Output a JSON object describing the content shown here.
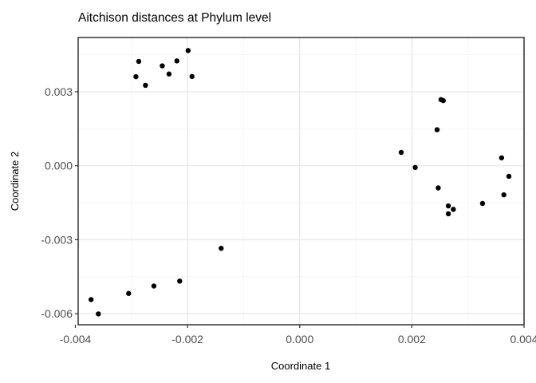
{
  "chart_data": {
    "type": "scatter",
    "title": "Aitchison distances at Phylum level",
    "xlabel": "Coordinate 1",
    "ylabel": "Coordinate 2",
    "xlim": [
      -0.00395,
      0.004
    ],
    "ylim": [
      -0.00645,
      0.0052
    ],
    "x_ticks": [
      -0.004,
      -0.002,
      0.0,
      0.002,
      0.004
    ],
    "x_tick_labels": [
      "-0.004",
      "-0.002",
      "0.000",
      "0.002",
      "0.004"
    ],
    "y_ticks": [
      -0.006,
      -0.003,
      0.0,
      0.003
    ],
    "y_tick_labels": [
      "-0.006",
      "-0.003",
      "0.000",
      "0.003"
    ],
    "grid": true,
    "theme": "black-and-white",
    "points": [
      {
        "x": -0.00287,
        "y": 0.00423
      },
      {
        "x": -0.00292,
        "y": 0.00361
      },
      {
        "x": -0.00275,
        "y": 0.00326
      },
      {
        "x": -0.00245,
        "y": 0.00405
      },
      {
        "x": -0.00233,
        "y": 0.00372
      },
      {
        "x": -0.00219,
        "y": 0.00425
      },
      {
        "x": -0.00199,
        "y": 0.00467
      },
      {
        "x": -0.00192,
        "y": 0.00362
      },
      {
        "x": -0.0014,
        "y": -0.00335
      },
      {
        "x": -0.00214,
        "y": -0.00468
      },
      {
        "x": -0.0026,
        "y": -0.00488
      },
      {
        "x": -0.00305,
        "y": -0.00518
      },
      {
        "x": -0.00372,
        "y": -0.00543
      },
      {
        "x": -0.00359,
        "y": -0.00601
      },
      {
        "x": 0.00181,
        "y": 0.00054
      },
      {
        "x": 0.00206,
        "y": -7e-05
      },
      {
        "x": 0.00245,
        "y": 0.00146
      },
      {
        "x": 0.00252,
        "y": 0.00268
      },
      {
        "x": 0.00256,
        "y": 0.00264
      },
      {
        "x": 0.00247,
        "y": -0.0009
      },
      {
        "x": 0.00265,
        "y": -0.00163
      },
      {
        "x": 0.00274,
        "y": -0.00177
      },
      {
        "x": 0.00265,
        "y": -0.00195
      },
      {
        "x": 0.00326,
        "y": -0.00153
      },
      {
        "x": 0.0036,
        "y": 0.00032
      },
      {
        "x": 0.00373,
        "y": -0.00043
      },
      {
        "x": 0.00364,
        "y": -0.00118
      }
    ]
  }
}
